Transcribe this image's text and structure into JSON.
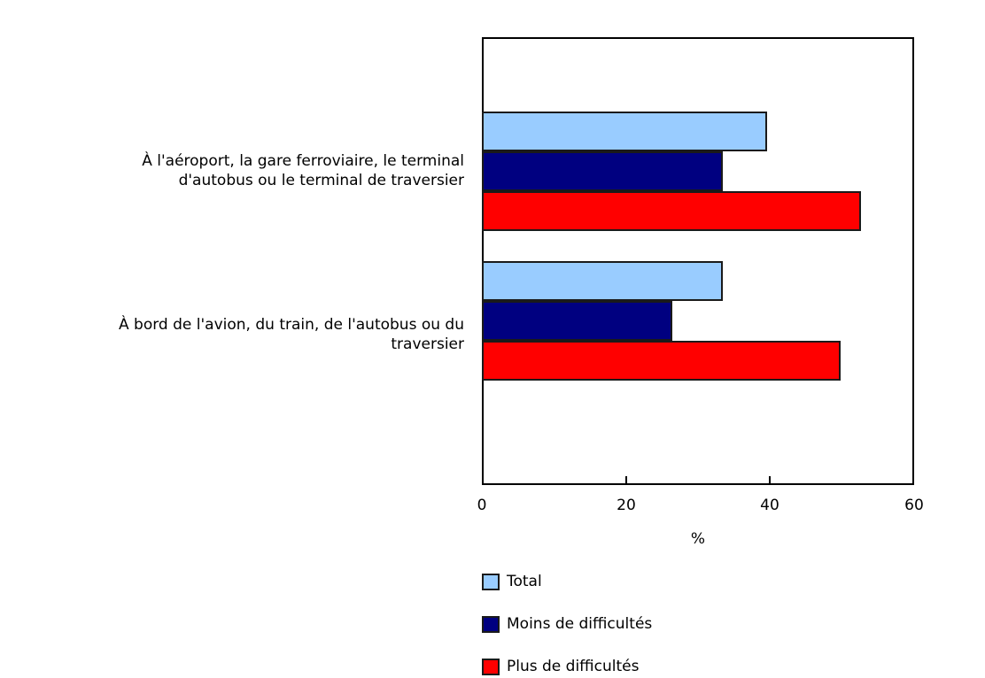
{
  "chart_data": {
    "type": "bar",
    "orientation": "horizontal",
    "title": "",
    "xlabel": "%",
    "ylabel": "",
    "xlim": [
      0,
      60
    ],
    "x_ticks": [
      "0",
      "20",
      "40",
      "60"
    ],
    "grid": false,
    "legend_position": "bottom",
    "categories": [
      "À l'aéroport, la gare ferroviaire, le terminal d'autobus ou le terminal de traversier",
      "À bord de l'avion, du train, de l'autobus ou du traversier"
    ],
    "series": [
      {
        "name": "Total",
        "color": "#99ccff",
        "values": [
          39.6,
          33.5
        ]
      },
      {
        "name": "Moins de difficultés",
        "color": "#000080",
        "values": [
          33.4,
          26.4
        ]
      },
      {
        "name": "Plus de difficultés",
        "color": "#ff0000",
        "values": [
          52.6,
          49.8
        ]
      }
    ]
  },
  "labels": {
    "cat1_line1": "À l'aéroport, la gare ferroviaire, le terminal",
    "cat1_line2": "d'autobus ou le terminal de traversier",
    "cat2_line1": "À bord de l'avion, du train, de l'autobus ou du",
    "cat2_line2": "traversier",
    "x_axis_title": "%",
    "ticks": [
      "0",
      "20",
      "40",
      "60"
    ]
  },
  "legend": [
    {
      "label": "Total",
      "color": "#99ccff"
    },
    {
      "label": "Moins de difficultés",
      "color": "#000080"
    },
    {
      "label": "Plus de difficultés",
      "color": "#ff0000"
    }
  ]
}
